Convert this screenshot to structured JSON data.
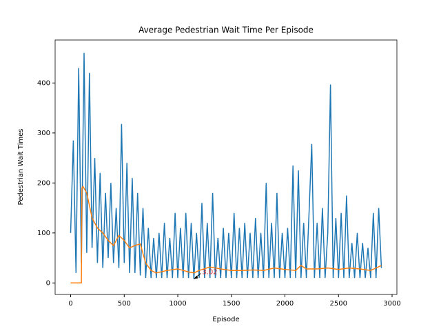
{
  "chart_data": {
    "type": "line",
    "title": "Average Pedestrian Wait Time Per Episode",
    "x_label": "Episode",
    "y_label": "Pedestrian Wait Times",
    "xlim": [
      -145,
      3045
    ],
    "ylim": [
      -23,
      486
    ],
    "xticks": [
      0,
      500,
      1000,
      1500,
      2000,
      2500,
      3000
    ],
    "yticks": [
      0,
      100,
      200,
      300,
      400
    ],
    "series": [
      {
        "color": "#1f77b4",
        "x": [
          0,
          25,
          50,
          75,
          100,
          125,
          150,
          175,
          200,
          225,
          250,
          275,
          300,
          325,
          350,
          375,
          400,
          425,
          450,
          475,
          500,
          525,
          550,
          575,
          600,
          625,
          650,
          675,
          700,
          725,
          750,
          775,
          800,
          825,
          850,
          875,
          900,
          925,
          950,
          975,
          1000,
          1025,
          1050,
          1075,
          1100,
          1125,
          1150,
          1175,
          1200,
          1225,
          1250,
          1275,
          1300,
          1325,
          1350,
          1375,
          1400,
          1425,
          1450,
          1475,
          1500,
          1525,
          1550,
          1575,
          1600,
          1625,
          1650,
          1675,
          1700,
          1725,
          1750,
          1775,
          1800,
          1825,
          1850,
          1875,
          1900,
          1925,
          1950,
          1975,
          2000,
          2025,
          2050,
          2075,
          2100,
          2125,
          2150,
          2175,
          2200,
          2225,
          2250,
          2275,
          2300,
          2325,
          2350,
          2375,
          2400,
          2425,
          2450,
          2475,
          2500,
          2525,
          2550,
          2575,
          2600,
          2625,
          2650,
          2675,
          2700,
          2725,
          2750,
          2775,
          2800,
          2825,
          2850,
          2875,
          2900
        ],
        "values": [
          100,
          285,
          20,
          430,
          40,
          460,
          60,
          420,
          70,
          250,
          40,
          220,
          30,
          180,
          50,
          200,
          40,
          150,
          30,
          318,
          40,
          240,
          20,
          210,
          20,
          180,
          15,
          150,
          10,
          110,
          10,
          90,
          10,
          100,
          10,
          120,
          10,
          90,
          10,
          140,
          10,
          110,
          10,
          140,
          10,
          120,
          8,
          100,
          10,
          160,
          10,
          120,
          10,
          180,
          10,
          90,
          10,
          110,
          10,
          100,
          10,
          140,
          10,
          110,
          10,
          120,
          10,
          100,
          10,
          130,
          10,
          100,
          10,
          200,
          10,
          120,
          10,
          180,
          10,
          100,
          10,
          110,
          10,
          235,
          10,
          225,
          10,
          120,
          10,
          140,
          278,
          10,
          120,
          10,
          150,
          10,
          100,
          397,
          10,
          130,
          10,
          140,
          10,
          175,
          10,
          80,
          10,
          100,
          10,
          80,
          10,
          70,
          10,
          140,
          10,
          150,
          30
        ]
      },
      {
        "color": "#ff7f0e",
        "x": [
          0,
          100,
          105,
          115,
          150,
          200,
          250,
          300,
          350,
          400,
          450,
          500,
          550,
          600,
          650,
          700,
          750,
          800,
          900,
          1000,
          1100,
          1150,
          1200,
          1300,
          1400,
          1500,
          1600,
          1700,
          1800,
          1900,
          2000,
          2100,
          2150,
          2200,
          2300,
          2400,
          2500,
          2600,
          2700,
          2800,
          2900
        ],
        "values": [
          0,
          0,
          190,
          193,
          180,
          130,
          110,
          100,
          85,
          75,
          95,
          85,
          70,
          75,
          78,
          40,
          25,
          20,
          25,
          28,
          22,
          20,
          25,
          32,
          28,
          25,
          25,
          26,
          25,
          30,
          27,
          25,
          35,
          28,
          28,
          30,
          27,
          30,
          28,
          25,
          35
        ]
      }
    ],
    "annotation": {
      "text": "3.02",
      "color": "#d62728",
      "x": 1150,
      "y": 8
    }
  }
}
